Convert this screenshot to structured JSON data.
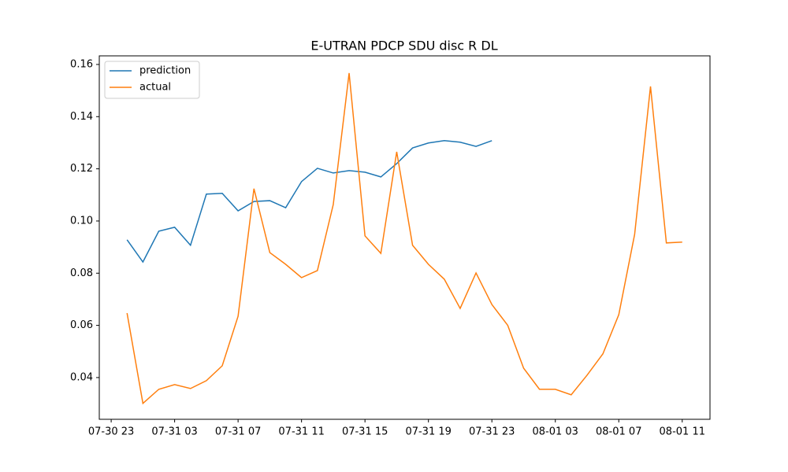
{
  "chart_data": {
    "type": "line",
    "title": "E-UTRAN PDCP SDU disc R DL",
    "x": [
      "07-31 00",
      "07-31 01",
      "07-31 02",
      "07-31 03",
      "07-31 04",
      "07-31 05",
      "07-31 06",
      "07-31 07",
      "07-31 08",
      "07-31 09",
      "07-31 10",
      "07-31 11",
      "07-31 12",
      "07-31 13",
      "07-31 14",
      "07-31 15",
      "07-31 16",
      "07-31 17",
      "07-31 18",
      "07-31 19",
      "07-31 20",
      "07-31 21",
      "07-31 22",
      "07-31 23",
      "08-01 00",
      "08-01 01",
      "08-01 02",
      "08-01 03",
      "08-01 04",
      "08-01 05",
      "08-01 06",
      "08-01 07",
      "08-01 08",
      "08-01 09",
      "08-01 10",
      "08-01 11"
    ],
    "series": [
      {
        "name": "prediction",
        "color": "#1f77b4",
        "values": [
          0.0928,
          0.0843,
          0.0961,
          0.0976,
          0.0907,
          0.1103,
          0.1106,
          0.1039,
          0.1075,
          0.1078,
          0.1051,
          0.1151,
          0.1202,
          0.1184,
          0.1193,
          0.1187,
          0.1169,
          0.122,
          0.128,
          0.1299,
          0.1308,
          0.1302,
          0.1286,
          0.1308,
          null,
          null,
          null,
          null,
          null,
          null,
          null,
          null,
          null,
          null,
          null,
          null
        ]
      },
      {
        "name": "actual",
        "color": "#ff7f0e",
        "values": [
          0.0647,
          0.0301,
          0.0355,
          0.0373,
          0.0358,
          0.0388,
          0.0445,
          0.0635,
          0.1124,
          0.0879,
          0.0834,
          0.0783,
          0.081,
          0.1063,
          0.1567,
          0.0943,
          0.0876,
          0.1265,
          0.0907,
          0.0834,
          0.0777,
          0.0665,
          0.0801,
          0.068,
          0.06,
          0.0436,
          0.0355,
          0.0355,
          0.0334,
          0.0409,
          0.0491,
          0.0641,
          0.0949,
          0.1516,
          0.0916,
          0.0919
        ]
      }
    ],
    "xlim": [
      "07-30 22:15",
      "08-01 12:45"
    ],
    "xticks": [
      "07-30 23",
      "07-31 03",
      "07-31 07",
      "07-31 11",
      "07-31 15",
      "07-31 19",
      "07-31 23",
      "08-01 03",
      "08-01 07",
      "08-01 11"
    ],
    "ylim": [
      0.024,
      0.1633
    ],
    "yticks": [
      0.04,
      0.06,
      0.08,
      {
        "value": 0.1,
        "label": "0.10"
      },
      0.12,
      0.14,
      0.16
    ],
    "legend": "upper left"
  }
}
